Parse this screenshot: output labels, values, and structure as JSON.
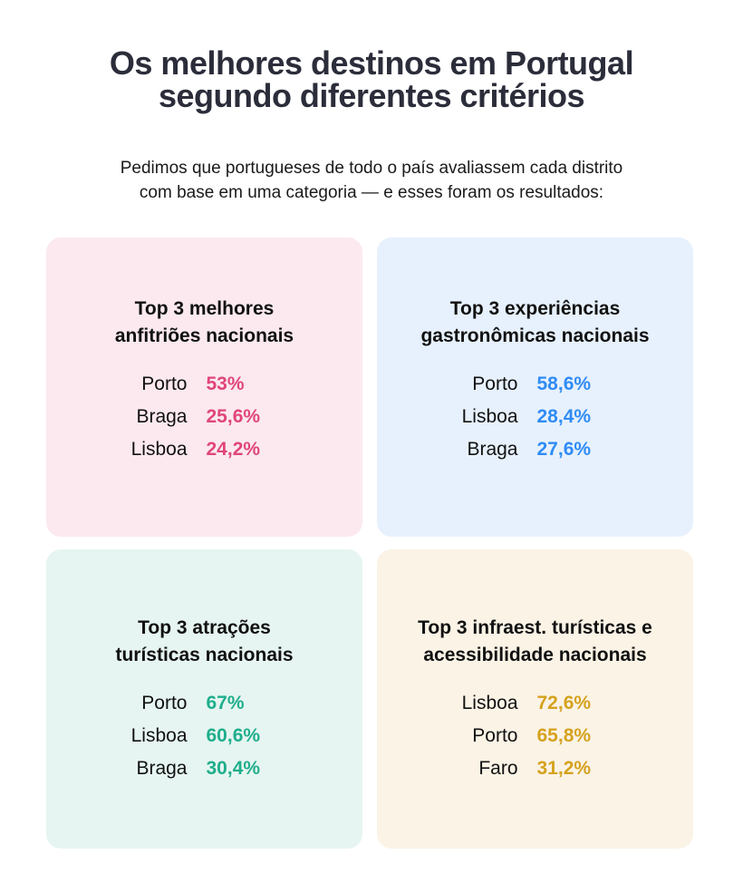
{
  "header": {
    "title_line1": "Os melhores destinos em Portugal",
    "title_line2": "segundo diferentes critérios",
    "subtitle_line1": "Pedimos que portugueses de todo o país avaliassem cada distrito",
    "subtitle_line2": "com base em uma categoria — e esses foram os resultados:"
  },
  "cards": [
    {
      "title_line1": "Top 3 melhores",
      "title_line2": "anfitriões nacionais",
      "bg": "#fbe9ef",
      "accent": "#e0457b",
      "rows": [
        {
          "label": "Porto",
          "value": "53%"
        },
        {
          "label": "Braga",
          "value": "25,6%"
        },
        {
          "label": "Lisboa",
          "value": "24,2%"
        }
      ]
    },
    {
      "title_line1": "Top 3 experiências",
      "title_line2": "gastronômicas nacionais",
      "bg": "#e7f1fd",
      "accent": "#2f8cf5",
      "rows": [
        {
          "label": "Porto",
          "value": "58,6%"
        },
        {
          "label": "Lisboa",
          "value": "28,4%"
        },
        {
          "label": "Braga",
          "value": "27,6%"
        }
      ]
    },
    {
      "title_line1": "Top 3 atrações",
      "title_line2": "turísticas nacionais",
      "bg": "#e6f5f1",
      "accent": "#1fae8c",
      "rows": [
        {
          "label": "Porto",
          "value": "67%"
        },
        {
          "label": "Lisboa",
          "value": "60,6%"
        },
        {
          "label": "Braga",
          "value": "30,4%"
        }
      ]
    },
    {
      "title_line1": "Top 3 infraest. turísticas e",
      "title_line2": "acessibilidade nacionais",
      "bg": "#faf3e6",
      "accent": "#d6a21e",
      "rows": [
        {
          "label": "Lisboa",
          "value": "72,6%"
        },
        {
          "label": "Porto",
          "value": "65,8%"
        },
        {
          "label": "Faro",
          "value": "31,2%"
        }
      ]
    }
  ]
}
